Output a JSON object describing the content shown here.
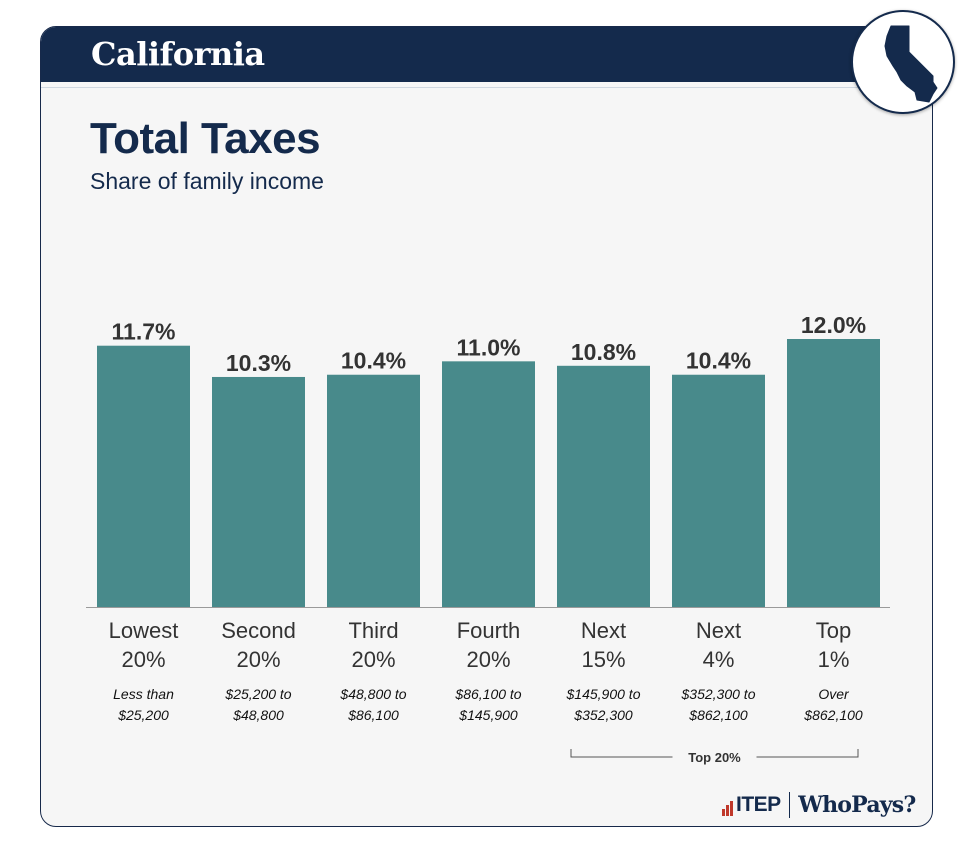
{
  "header": {
    "state_name": "California",
    "badge_icon": "california-map-icon"
  },
  "title": "Total Taxes",
  "subtitle": "Share of family income",
  "chart_data": {
    "type": "bar",
    "categories": [
      "Lowest 20%",
      "Second 20%",
      "Third 20%",
      "Fourth 20%",
      "Next 15%",
      "Next 4%",
      "Top 1%"
    ],
    "category_lines": [
      [
        "Lowest",
        "20%"
      ],
      [
        "Second",
        "20%"
      ],
      [
        "Third",
        "20%"
      ],
      [
        "Fourth",
        "20%"
      ],
      [
        "Next",
        "15%"
      ],
      [
        "Next",
        "4%"
      ],
      [
        "Top",
        "1%"
      ]
    ],
    "income_ranges": [
      [
        "Less than",
        "$25,200"
      ],
      [
        "$25,200 to",
        "$48,800"
      ],
      [
        "$48,800 to",
        "$86,100"
      ],
      [
        "$86,100 to",
        "$145,900"
      ],
      [
        "$145,900 to",
        "$352,300"
      ],
      [
        "$352,300 to",
        "$862,100"
      ],
      [
        "Over",
        "$862,100"
      ]
    ],
    "values": [
      11.7,
      10.3,
      10.4,
      11.0,
      10.8,
      10.4,
      12.0
    ],
    "value_labels": [
      "11.7%",
      "10.3%",
      "10.4%",
      "11.0%",
      "10.8%",
      "10.4%",
      "12.0%"
    ],
    "bracket": {
      "label": "Top 20%",
      "from_index": 4,
      "to_index": 6
    },
    "bar_color": "#488a8b",
    "label_color": "#333333",
    "ylim": [
      0,
      12.0
    ],
    "grid": false
  },
  "footer": {
    "itep_label": "ITEP",
    "whopays_label": "WhoPays?",
    "accent_color": "#c0392b"
  }
}
